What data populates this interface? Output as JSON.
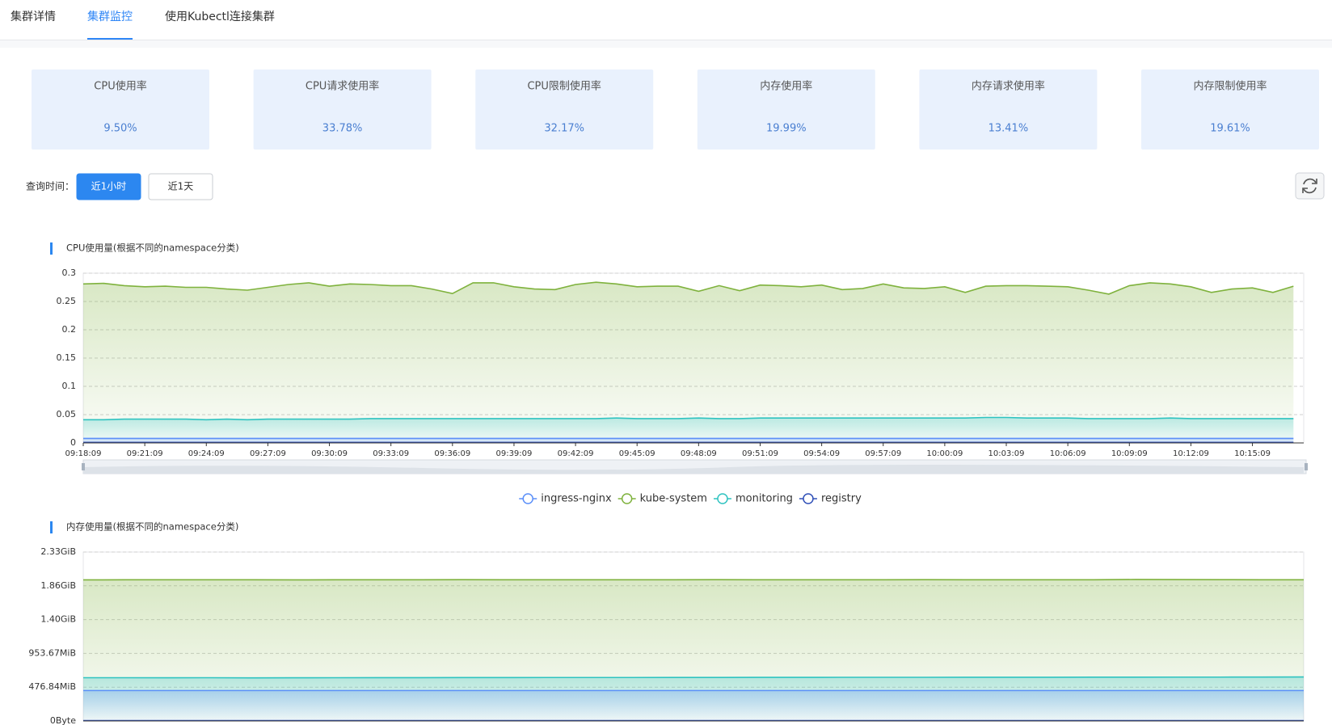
{
  "tabs": [
    "集群详情",
    "集群监控",
    "使用Kubectl连接集群"
  ],
  "stats": [
    {
      "label": "CPU使用率",
      "value": "9.50%"
    },
    {
      "label": "CPU请求使用率",
      "value": "33.78%"
    },
    {
      "label": "CPU限制使用率",
      "value": "32.17%"
    },
    {
      "label": "内存使用率",
      "value": "19.99%"
    },
    {
      "label": "内存请求使用率",
      "value": "13.41%"
    },
    {
      "label": "内存限制使用率",
      "value": "19.61%"
    }
  ],
  "query": {
    "label": "查询时间：",
    "options": [
      "近1小时",
      "近1天"
    ]
  },
  "chart_data": [
    {
      "type": "line",
      "title": "CPU使用量(根据不同的namespace分类)",
      "x": [
        "09:18:09",
        null,
        null,
        "09:21:09",
        null,
        null,
        "09:24:09",
        null,
        null,
        "09:27:09",
        null,
        null,
        "09:30:09",
        null,
        null,
        "09:33:09",
        null,
        null,
        "09:36:09",
        null,
        null,
        "09:39:09",
        null,
        null,
        "09:42:09",
        null,
        null,
        "09:45:09",
        null,
        null,
        "09:48:09",
        null,
        null,
        "09:51:09",
        null,
        null,
        "09:54:09",
        null,
        null,
        "09:57:09",
        null,
        null,
        "10:00:09",
        null,
        null,
        "10:03:09",
        null,
        null,
        "10:06:09",
        null,
        null,
        "10:09:09",
        null,
        null,
        "10:12:09",
        null,
        null,
        "10:15:09",
        null,
        null
      ],
      "ylim": [
        0,
        0.3
      ],
      "yticks": [
        0,
        0.05,
        0.1,
        0.15,
        0.2,
        0.25,
        0.3
      ],
      "grid": true,
      "legend": "bottom",
      "series": [
        {
          "name": "ingress-nginx",
          "color": "#5b8ff9",
          "values": [
            0.008,
            0.008,
            0.008,
            0.008,
            0.008,
            0.008,
            0.008,
            0.008,
            0.008,
            0.008,
            0.008,
            0.008,
            0.008,
            0.008,
            0.008,
            0.008,
            0.008,
            0.008,
            0.008,
            0.008,
            0.008,
            0.008,
            0.008,
            0.008,
            0.008,
            0.008,
            0.008,
            0.008,
            0.008,
            0.008,
            0.008,
            0.008,
            0.008,
            0.008,
            0.008,
            0.008,
            0.008,
            0.008,
            0.008,
            0.008,
            0.008,
            0.008,
            0.008,
            0.008,
            0.008,
            0.008,
            0.008,
            0.008,
            0.008,
            0.008,
            0.008,
            0.008,
            0.008,
            0.008,
            0.008,
            0.008,
            0.008,
            0.008,
            0.008,
            0.008
          ]
        },
        {
          "name": "kube-system",
          "color": "#7fb23d",
          "values": [
            0.281,
            0.282,
            0.278,
            0.276,
            0.277,
            0.275,
            0.275,
            0.272,
            0.27,
            0.275,
            0.28,
            0.283,
            0.277,
            0.281,
            0.28,
            0.278,
            0.278,
            0.272,
            0.264,
            0.283,
            0.283,
            0.276,
            0.272,
            0.271,
            0.28,
            0.284,
            0.281,
            0.276,
            0.277,
            0.277,
            0.268,
            0.278,
            0.269,
            0.279,
            0.278,
            0.276,
            0.279,
            0.271,
            0.273,
            0.281,
            0.274,
            0.273,
            0.276,
            0.266,
            0.277,
            0.278,
            0.278,
            0.277,
            0.276,
            0.27,
            0.263,
            0.278,
            0.283,
            0.281,
            0.276,
            0.266,
            0.272,
            0.274,
            0.266,
            0.277
          ]
        },
        {
          "name": "monitoring",
          "color": "#2fc3c0",
          "values": [
            0.041,
            0.041,
            0.042,
            0.042,
            0.042,
            0.042,
            0.041,
            0.042,
            0.041,
            0.042,
            0.042,
            0.042,
            0.042,
            0.042,
            0.043,
            0.043,
            0.043,
            0.043,
            0.043,
            0.043,
            0.043,
            0.043,
            0.043,
            0.043,
            0.043,
            0.043,
            0.044,
            0.043,
            0.043,
            0.043,
            0.044,
            0.043,
            0.043,
            0.044,
            0.044,
            0.044,
            0.044,
            0.044,
            0.044,
            0.044,
            0.044,
            0.044,
            0.044,
            0.044,
            0.045,
            0.045,
            0.044,
            0.044,
            0.044,
            0.043,
            0.043,
            0.043,
            0.043,
            0.044,
            0.043,
            0.043,
            0.043,
            0.043,
            0.043,
            0.043
          ]
        },
        {
          "name": "registry",
          "color": "#3050b8",
          "values": [
            0.001,
            0.001,
            0.001,
            0.001,
            0.001,
            0.001,
            0.001,
            0.001,
            0.001,
            0.001,
            0.001,
            0.001,
            0.001,
            0.001,
            0.001,
            0.001,
            0.001,
            0.001,
            0.001,
            0.001,
            0.001,
            0.001,
            0.001,
            0.001,
            0.001,
            0.001,
            0.001,
            0.001,
            0.001,
            0.001,
            0.001,
            0.001,
            0.001,
            0.001,
            0.001,
            0.001,
            0.001,
            0.001,
            0.001,
            0.001,
            0.001,
            0.001,
            0.001,
            0.001,
            0.001,
            0.001,
            0.001,
            0.001,
            0.001,
            0.001,
            0.001,
            0.001,
            0.001,
            0.001,
            0.001,
            0.001,
            0.001,
            0.001,
            0.001,
            0.001
          ]
        }
      ]
    },
    {
      "type": "line",
      "title": "内存使用量(根据不同的namespace分类)",
      "ylim": [
        0,
        2500000000
      ],
      "yticks": [
        {
          "value": 0,
          "label": "0Byte"
        },
        {
          "value": 500000000,
          "label": "476.84MiB"
        },
        {
          "value": 1000000000,
          "label": "953.67MiB"
        },
        {
          "value": 1500000000,
          "label": "1.40GiB"
        },
        {
          "value": 2000000000,
          "label": "1.86GiB"
        },
        {
          "value": 2500000000,
          "label": "2.33GiB"
        }
      ],
      "grid": true,
      "series": [
        {
          "color": "#5b8ff9",
          "values": [
            450000000,
            450000000,
            450000000,
            450000000,
            450000000,
            450000000,
            450000000,
            450000000,
            450000000,
            450000000,
            450000000,
            450000000,
            450000000,
            450000000,
            450000000,
            450000000,
            450000000,
            450000000,
            450000000,
            450000000,
            450000000,
            450000000,
            450000000,
            450000000,
            450000000,
            450000000,
            450000000,
            450000000,
            450000000,
            450000000
          ]
        },
        {
          "color": "#7fb23d",
          "values": [
            2088000000,
            2089000000,
            2090000000,
            2090000000,
            2089000000,
            2088000000,
            2089000000,
            2090000000,
            2090000000,
            2091000000,
            2090000000,
            2089000000,
            2089000000,
            2090000000,
            2090000000,
            2091000000,
            2090000000,
            2089000000,
            2090000000,
            2090000000,
            2091000000,
            2090000000,
            2090000000,
            2089000000,
            2090000000,
            2094000000,
            2092000000,
            2091000000,
            2090000000,
            2089000000
          ]
        },
        {
          "color": "#2fc3c0",
          "values": [
            640000000,
            640000000,
            639000000,
            640000000,
            638000000,
            639000000,
            640000000,
            641000000,
            641000000,
            642000000,
            642000000,
            643000000,
            643000000,
            643000000,
            644000000,
            644000000,
            645000000,
            645000000,
            646000000,
            646000000,
            646000000,
            647000000,
            647000000,
            647000000,
            648000000,
            648000000,
            649000000,
            649000000,
            650000000,
            651000000
          ]
        },
        {
          "color": "#3050b8",
          "values": [
            5000000,
            5000000,
            5000000,
            5000000,
            5000000,
            5000000,
            5000000,
            5000000,
            5000000,
            5000000,
            5000000,
            5000000,
            5000000,
            5000000,
            5000000,
            5000000,
            5000000,
            5000000,
            5000000,
            5000000,
            5000000,
            5000000,
            5000000,
            5000000,
            5000000,
            5000000,
            5000000,
            5000000,
            5000000,
            5000000
          ]
        }
      ]
    }
  ]
}
